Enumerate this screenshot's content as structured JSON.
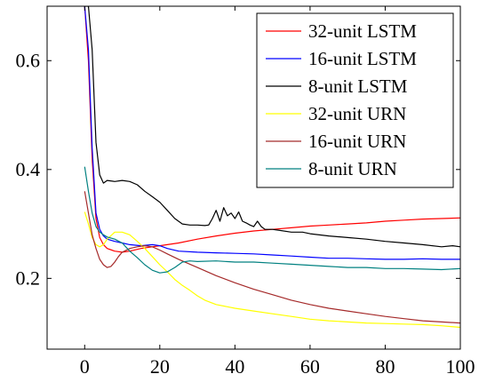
{
  "chart_data": {
    "type": "line",
    "title": "",
    "xlabel": "",
    "ylabel": "",
    "xlim": [
      -10,
      100
    ],
    "ylim": [
      0.07,
      0.7
    ],
    "xticks": [
      0,
      20,
      40,
      60,
      80,
      100
    ],
    "yticks": [
      0.2,
      0.4,
      0.6
    ],
    "grid": false,
    "legend_position": "top-right",
    "series": [
      {
        "name": "32-unit LSTM",
        "color": "#ff0000",
        "points": [
          [
            0,
            0.7
          ],
          [
            1,
            0.6
          ],
          [
            2,
            0.42
          ],
          [
            3,
            0.31
          ],
          [
            4,
            0.275
          ],
          [
            5,
            0.262
          ],
          [
            6,
            0.255
          ],
          [
            8,
            0.25
          ],
          [
            10,
            0.248
          ],
          [
            12,
            0.25
          ],
          [
            15,
            0.255
          ],
          [
            18,
            0.258
          ],
          [
            20,
            0.26
          ],
          [
            25,
            0.265
          ],
          [
            30,
            0.272
          ],
          [
            35,
            0.278
          ],
          [
            40,
            0.283
          ],
          [
            45,
            0.287
          ],
          [
            50,
            0.29
          ],
          [
            55,
            0.293
          ],
          [
            60,
            0.296
          ],
          [
            65,
            0.298
          ],
          [
            70,
            0.3
          ],
          [
            75,
            0.302
          ],
          [
            80,
            0.305
          ],
          [
            85,
            0.307
          ],
          [
            90,
            0.309
          ],
          [
            95,
            0.31
          ],
          [
            100,
            0.311
          ]
        ]
      },
      {
        "name": "16-unit LSTM",
        "color": "#0000ff",
        "points": [
          [
            0,
            0.7
          ],
          [
            1,
            0.62
          ],
          [
            2,
            0.44
          ],
          [
            3,
            0.32
          ],
          [
            4,
            0.29
          ],
          [
            5,
            0.278
          ],
          [
            6,
            0.272
          ],
          [
            8,
            0.268
          ],
          [
            10,
            0.265
          ],
          [
            12,
            0.262
          ],
          [
            15,
            0.26
          ],
          [
            18,
            0.262
          ],
          [
            20,
            0.26
          ],
          [
            22,
            0.255
          ],
          [
            25,
            0.25
          ],
          [
            30,
            0.248
          ],
          [
            35,
            0.247
          ],
          [
            40,
            0.246
          ],
          [
            45,
            0.245
          ],
          [
            50,
            0.243
          ],
          [
            55,
            0.241
          ],
          [
            60,
            0.239
          ],
          [
            65,
            0.237
          ],
          [
            70,
            0.237
          ],
          [
            75,
            0.236
          ],
          [
            80,
            0.235
          ],
          [
            85,
            0.235
          ],
          [
            90,
            0.236
          ],
          [
            95,
            0.235
          ],
          [
            100,
            0.235
          ]
        ]
      },
      {
        "name": "8-unit LSTM",
        "color": "#000000",
        "points": [
          [
            0,
            0.7
          ],
          [
            1,
            0.7
          ],
          [
            2,
            0.62
          ],
          [
            3,
            0.45
          ],
          [
            4,
            0.39
          ],
          [
            5,
            0.375
          ],
          [
            6,
            0.38
          ],
          [
            8,
            0.378
          ],
          [
            10,
            0.38
          ],
          [
            12,
            0.378
          ],
          [
            14,
            0.372
          ],
          [
            16,
            0.36
          ],
          [
            18,
            0.35
          ],
          [
            20,
            0.34
          ],
          [
            22,
            0.325
          ],
          [
            24,
            0.31
          ],
          [
            26,
            0.3
          ],
          [
            28,
            0.298
          ],
          [
            30,
            0.298
          ],
          [
            32,
            0.297
          ],
          [
            33,
            0.298
          ],
          [
            34,
            0.31
          ],
          [
            35,
            0.325
          ],
          [
            36,
            0.305
          ],
          [
            37,
            0.33
          ],
          [
            38,
            0.315
          ],
          [
            39,
            0.32
          ],
          [
            40,
            0.31
          ],
          [
            41,
            0.322
          ],
          [
            42,
            0.305
          ],
          [
            43,
            0.302
          ],
          [
            44,
            0.298
          ],
          [
            45,
            0.295
          ],
          [
            46,
            0.305
          ],
          [
            47,
            0.295
          ],
          [
            48,
            0.29
          ],
          [
            50,
            0.29
          ],
          [
            52,
            0.288
          ],
          [
            55,
            0.285
          ],
          [
            58,
            0.285
          ],
          [
            60,
            0.282
          ],
          [
            65,
            0.278
          ],
          [
            70,
            0.275
          ],
          [
            75,
            0.272
          ],
          [
            80,
            0.268
          ],
          [
            85,
            0.265
          ],
          [
            90,
            0.262
          ],
          [
            95,
            0.258
          ],
          [
            98,
            0.26
          ],
          [
            100,
            0.258
          ]
        ]
      },
      {
        "name": "32-unit URN",
        "color": "#ffff00",
        "points": [
          [
            0,
            0.322
          ],
          [
            1,
            0.3
          ],
          [
            2,
            0.275
          ],
          [
            3,
            0.262
          ],
          [
            4,
            0.258
          ],
          [
            5,
            0.262
          ],
          [
            6,
            0.272
          ],
          [
            8,
            0.285
          ],
          [
            10,
            0.285
          ],
          [
            12,
            0.28
          ],
          [
            14,
            0.268
          ],
          [
            16,
            0.255
          ],
          [
            18,
            0.24
          ],
          [
            20,
            0.225
          ],
          [
            22,
            0.212
          ],
          [
            24,
            0.198
          ],
          [
            26,
            0.187
          ],
          [
            28,
            0.178
          ],
          [
            30,
            0.168
          ],
          [
            32,
            0.16
          ],
          [
            35,
            0.152
          ],
          [
            40,
            0.145
          ],
          [
            45,
            0.14
          ],
          [
            50,
            0.135
          ],
          [
            55,
            0.13
          ],
          [
            60,
            0.125
          ],
          [
            65,
            0.122
          ],
          [
            70,
            0.12
          ],
          [
            75,
            0.118
          ],
          [
            80,
            0.117
          ],
          [
            85,
            0.116
          ],
          [
            90,
            0.115
          ],
          [
            95,
            0.113
          ],
          [
            100,
            0.11
          ]
        ]
      },
      {
        "name": "16-unit URN",
        "color": "#a52a2a",
        "points": [
          [
            0,
            0.36
          ],
          [
            1,
            0.32
          ],
          [
            2,
            0.28
          ],
          [
            3,
            0.255
          ],
          [
            4,
            0.235
          ],
          [
            5,
            0.225
          ],
          [
            6,
            0.22
          ],
          [
            7,
            0.222
          ],
          [
            8,
            0.23
          ],
          [
            9,
            0.24
          ],
          [
            10,
            0.248
          ],
          [
            12,
            0.255
          ],
          [
            14,
            0.258
          ],
          [
            16,
            0.26
          ],
          [
            18,
            0.258
          ],
          [
            20,
            0.252
          ],
          [
            22,
            0.245
          ],
          [
            25,
            0.235
          ],
          [
            30,
            0.22
          ],
          [
            35,
            0.205
          ],
          [
            40,
            0.192
          ],
          [
            45,
            0.18
          ],
          [
            50,
            0.17
          ],
          [
            55,
            0.16
          ],
          [
            60,
            0.152
          ],
          [
            65,
            0.145
          ],
          [
            70,
            0.14
          ],
          [
            75,
            0.135
          ],
          [
            80,
            0.13
          ],
          [
            85,
            0.126
          ],
          [
            90,
            0.122
          ],
          [
            95,
            0.12
          ],
          [
            100,
            0.118
          ]
        ]
      },
      {
        "name": "8-unit URN",
        "color": "#008080",
        "points": [
          [
            0,
            0.405
          ],
          [
            1,
            0.36
          ],
          [
            2,
            0.32
          ],
          [
            3,
            0.295
          ],
          [
            4,
            0.285
          ],
          [
            5,
            0.28
          ],
          [
            6,
            0.276
          ],
          [
            8,
            0.272
          ],
          [
            10,
            0.265
          ],
          [
            12,
            0.25
          ],
          [
            14,
            0.238
          ],
          [
            16,
            0.225
          ],
          [
            18,
            0.215
          ],
          [
            20,
            0.21
          ],
          [
            22,
            0.212
          ],
          [
            24,
            0.22
          ],
          [
            26,
            0.23
          ],
          [
            28,
            0.232
          ],
          [
            30,
            0.231
          ],
          [
            35,
            0.232
          ],
          [
            40,
            0.23
          ],
          [
            45,
            0.23
          ],
          [
            50,
            0.228
          ],
          [
            55,
            0.226
          ],
          [
            60,
            0.224
          ],
          [
            65,
            0.222
          ],
          [
            70,
            0.22
          ],
          [
            75,
            0.22
          ],
          [
            80,
            0.218
          ],
          [
            85,
            0.218
          ],
          [
            90,
            0.217
          ],
          [
            95,
            0.216
          ],
          [
            100,
            0.218
          ]
        ]
      }
    ]
  }
}
